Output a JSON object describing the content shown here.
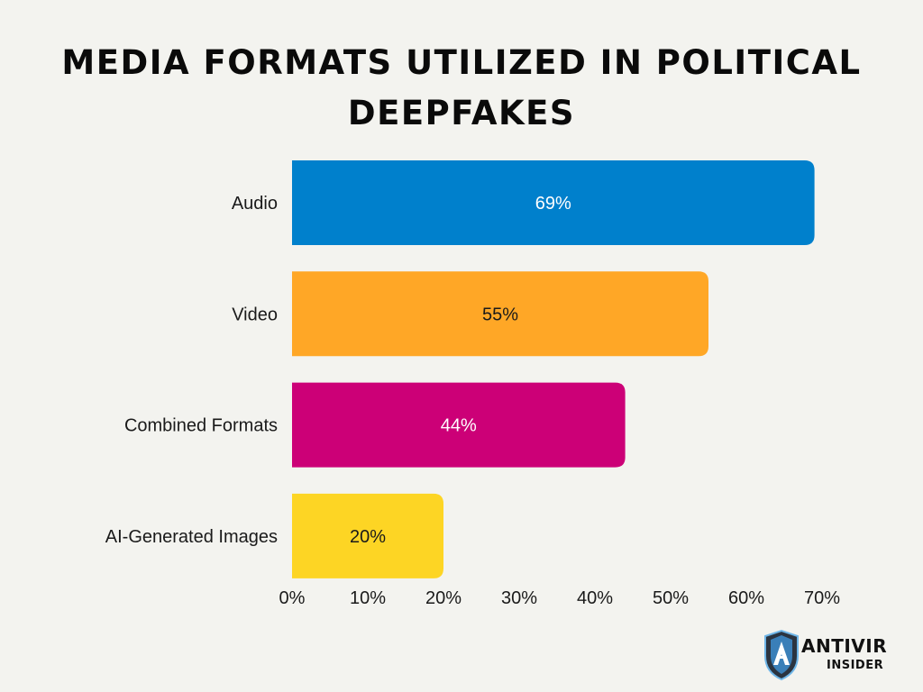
{
  "chart_data": {
    "type": "bar",
    "orientation": "horizontal",
    "title": "Media Formats Utilized in Political Deepfakes",
    "categories": [
      "Audio",
      "Video",
      "Combined Formats",
      "AI-Generated Images"
    ],
    "values": [
      69,
      55,
      44,
      20
    ],
    "value_labels": [
      "69%",
      "55%",
      "44%",
      "20%"
    ],
    "colors": [
      "#0080cc",
      "#ffa726",
      "#cc0077",
      "#fdd524"
    ],
    "label_colors": [
      "#ffffff",
      "#1a1a1a",
      "#ffffff",
      "#1a1a1a"
    ],
    "xlim": [
      0,
      70
    ],
    "xticks": [
      0,
      10,
      20,
      30,
      40,
      50,
      60,
      70
    ],
    "xtick_labels": [
      "0%",
      "10%",
      "20%",
      "30%",
      "40%",
      "50%",
      "60%",
      "70%"
    ],
    "grid": false,
    "legend": "none"
  },
  "logo": {
    "line1": "ANTIVIRUS",
    "line2": "INSIDER"
  }
}
